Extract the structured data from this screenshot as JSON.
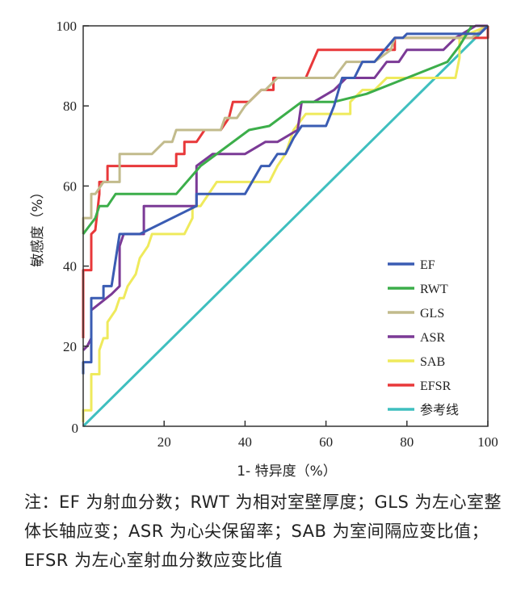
{
  "chart_data": {
    "type": "line",
    "title": "",
    "xlabel": "1- 特异度（%）",
    "ylabel": "敏感度（%）",
    "xlim": [
      0,
      100
    ],
    "ylim": [
      0,
      100
    ],
    "xticks": [
      0,
      20,
      40,
      60,
      80,
      100
    ],
    "yticks": [
      20,
      40,
      60,
      80,
      100
    ],
    "origin_label": "0",
    "grid": false,
    "legend_position": "bottom-right",
    "series": [
      {
        "name": "EF",
        "color": "#3a5cb3",
        "points": [
          [
            0,
            13
          ],
          [
            0,
            16
          ],
          [
            2,
            16
          ],
          [
            2,
            32
          ],
          [
            5,
            32
          ],
          [
            5,
            35
          ],
          [
            7,
            35
          ],
          [
            9,
            48
          ],
          [
            14,
            48
          ],
          [
            28,
            55
          ],
          [
            28,
            58
          ],
          [
            40,
            58
          ],
          [
            44,
            65
          ],
          [
            46,
            65
          ],
          [
            48,
            68
          ],
          [
            50,
            68
          ],
          [
            52,
            72
          ],
          [
            54,
            75
          ],
          [
            60,
            75
          ],
          [
            62,
            80
          ],
          [
            64,
            87
          ],
          [
            67,
            87
          ],
          [
            69,
            91
          ],
          [
            72,
            91
          ],
          [
            77,
            97
          ],
          [
            79,
            97
          ],
          [
            80,
            98
          ],
          [
            98,
            98
          ],
          [
            100,
            100
          ]
        ]
      },
      {
        "name": "RWT",
        "color": "#3cae4a",
        "points": [
          [
            0,
            48
          ],
          [
            3,
            52
          ],
          [
            4,
            55
          ],
          [
            6,
            55
          ],
          [
            8,
            58
          ],
          [
            23,
            58
          ],
          [
            29,
            65
          ],
          [
            41,
            74
          ],
          [
            46,
            75
          ],
          [
            54,
            81
          ],
          [
            62,
            81
          ],
          [
            70,
            83
          ],
          [
            80,
            87
          ],
          [
            90,
            91
          ],
          [
            93,
            95
          ],
          [
            96,
            100
          ]
        ]
      },
      {
        "name": "GLS",
        "color": "#c2bb8c",
        "points": [
          [
            0,
            48
          ],
          [
            0,
            52
          ],
          [
            2,
            52
          ],
          [
            2,
            58
          ],
          [
            3,
            58
          ],
          [
            5,
            61
          ],
          [
            9,
            61
          ],
          [
            9,
            68
          ],
          [
            17,
            68
          ],
          [
            20,
            71
          ],
          [
            22,
            71
          ],
          [
            23,
            74
          ],
          [
            34,
            74
          ],
          [
            35,
            77
          ],
          [
            38,
            77
          ],
          [
            40,
            80
          ],
          [
            44,
            84
          ],
          [
            45,
            84
          ],
          [
            48,
            87
          ],
          [
            62,
            87
          ],
          [
            65,
            91
          ],
          [
            72,
            91
          ],
          [
            76,
            94
          ],
          [
            77,
            97
          ],
          [
            96,
            97
          ],
          [
            100,
            100
          ]
        ]
      },
      {
        "name": "ASR",
        "color": "#7b3a96",
        "points": [
          [
            0,
            19
          ],
          [
            1,
            20
          ],
          [
            2,
            22
          ],
          [
            2,
            29
          ],
          [
            7,
            33
          ],
          [
            9,
            35
          ],
          [
            9,
            45
          ],
          [
            10,
            48
          ],
          [
            15,
            48
          ],
          [
            15,
            55
          ],
          [
            28,
            55
          ],
          [
            28,
            65
          ],
          [
            32,
            68
          ],
          [
            40,
            68
          ],
          [
            45,
            71
          ],
          [
            48,
            71
          ],
          [
            53,
            74
          ],
          [
            54,
            81
          ],
          [
            57,
            81
          ],
          [
            62,
            84
          ],
          [
            65,
            87
          ],
          [
            72,
            87
          ],
          [
            75,
            91
          ],
          [
            78,
            91
          ],
          [
            80,
            94
          ],
          [
            89,
            94
          ],
          [
            92,
            97
          ],
          [
            97,
            100
          ],
          [
            100,
            100
          ]
        ]
      },
      {
        "name": "SAB",
        "color": "#efea5c",
        "points": [
          [
            0,
            1
          ],
          [
            0,
            4
          ],
          [
            2,
            4
          ],
          [
            2,
            13
          ],
          [
            4,
            13
          ],
          [
            4,
            19
          ],
          [
            5,
            22
          ],
          [
            6,
            22
          ],
          [
            6,
            26
          ],
          [
            8,
            29
          ],
          [
            9,
            32
          ],
          [
            10,
            32
          ],
          [
            11,
            35
          ],
          [
            13,
            38
          ],
          [
            14,
            42
          ],
          [
            16,
            45
          ],
          [
            17,
            48
          ],
          [
            25,
            48
          ],
          [
            27,
            52
          ],
          [
            27,
            55
          ],
          [
            29,
            55
          ],
          [
            33,
            61
          ],
          [
            46,
            61
          ],
          [
            48,
            65
          ],
          [
            50,
            68
          ],
          [
            51,
            71
          ],
          [
            52,
            74
          ],
          [
            55,
            78
          ],
          [
            66,
            78
          ],
          [
            66,
            81
          ],
          [
            69,
            84
          ],
          [
            72,
            84
          ],
          [
            75,
            87
          ],
          [
            92,
            87
          ],
          [
            93,
            92
          ],
          [
            93,
            97
          ],
          [
            100,
            100
          ]
        ]
      },
      {
        "name": "EFSR",
        "color": "#e8383a",
        "points": [
          [
            0,
            22
          ],
          [
            0,
            39
          ],
          [
            2,
            39
          ],
          [
            2,
            48
          ],
          [
            3,
            49
          ],
          [
            4,
            58
          ],
          [
            4,
            61
          ],
          [
            6,
            61
          ],
          [
            6,
            65
          ],
          [
            23,
            65
          ],
          [
            23,
            68
          ],
          [
            25,
            68
          ],
          [
            25,
            71
          ],
          [
            28,
            71
          ],
          [
            30,
            74
          ],
          [
            34,
            74
          ],
          [
            36,
            77
          ],
          [
            37,
            81
          ],
          [
            41,
            81
          ],
          [
            44,
            84
          ],
          [
            47,
            84
          ],
          [
            47,
            87
          ],
          [
            55,
            87
          ],
          [
            58,
            94
          ],
          [
            77,
            94
          ],
          [
            77,
            97
          ],
          [
            100,
            97
          ],
          [
            100,
            100
          ]
        ]
      },
      {
        "name": "参考线",
        "color": "#3fbfbf",
        "points": [
          [
            0,
            0
          ],
          [
            100,
            100
          ]
        ]
      }
    ]
  },
  "note": "注：EF 为射血分数；RWT 为相对室壁厚度；GLS 为左心室整体长轴应变；ASR 为心尖保留率；SAB 为室间隔应变比值；EFSR 为左心室射血分数应变比值"
}
